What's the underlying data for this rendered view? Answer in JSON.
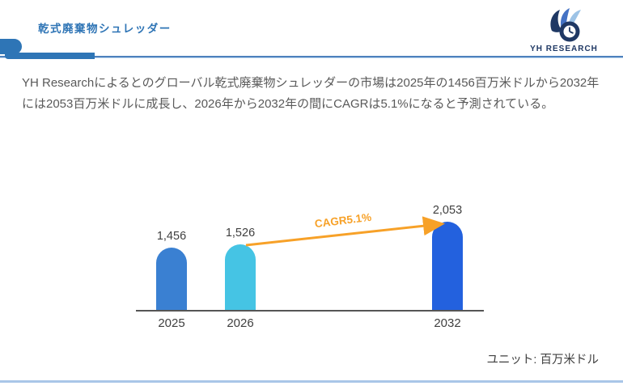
{
  "header": {
    "title": "乾式廃棄物シュレッダー",
    "logo_brand": "YH RESEARCH"
  },
  "summary": {
    "text": "YH Researchによるとのグローバル乾式廃棄物シュレッダーの市場は2025年の1456百万米ドルから2032年には2053百万米ドルに成長し、2026年から2032年の間にCAGRは5.1%になると予測されている。"
  },
  "chart_data": {
    "type": "bar",
    "categories": [
      "2025",
      "2026",
      "2032"
    ],
    "values": [
      1456,
      1526,
      2053
    ],
    "value_labels": [
      "1,456",
      "1,526",
      "2,053"
    ],
    "bar_colors": [
      "#3A80D2",
      "#45C4E4",
      "#2361DE"
    ],
    "annotation": {
      "label": "CAGR5.1%",
      "color": "#F7A128",
      "from_category": "2026",
      "to_category": "2032"
    },
    "unit_label": "ユニット: 百万米ドル",
    "title": "",
    "xlabel": "",
    "ylabel": "",
    "ylim": [
      0,
      2200
    ],
    "grid": false,
    "legend": false,
    "bar_shape": "rounded-top"
  },
  "colors": {
    "accent_blue": "#2E75B6",
    "divider_light_blue": "#A9C6E8",
    "body_text": "#595959",
    "label_text": "#3f3f3f",
    "logo_navy": "#1F3864",
    "logo_mid_blue": "#4472C4",
    "logo_light_blue": "#9DC3E6"
  }
}
